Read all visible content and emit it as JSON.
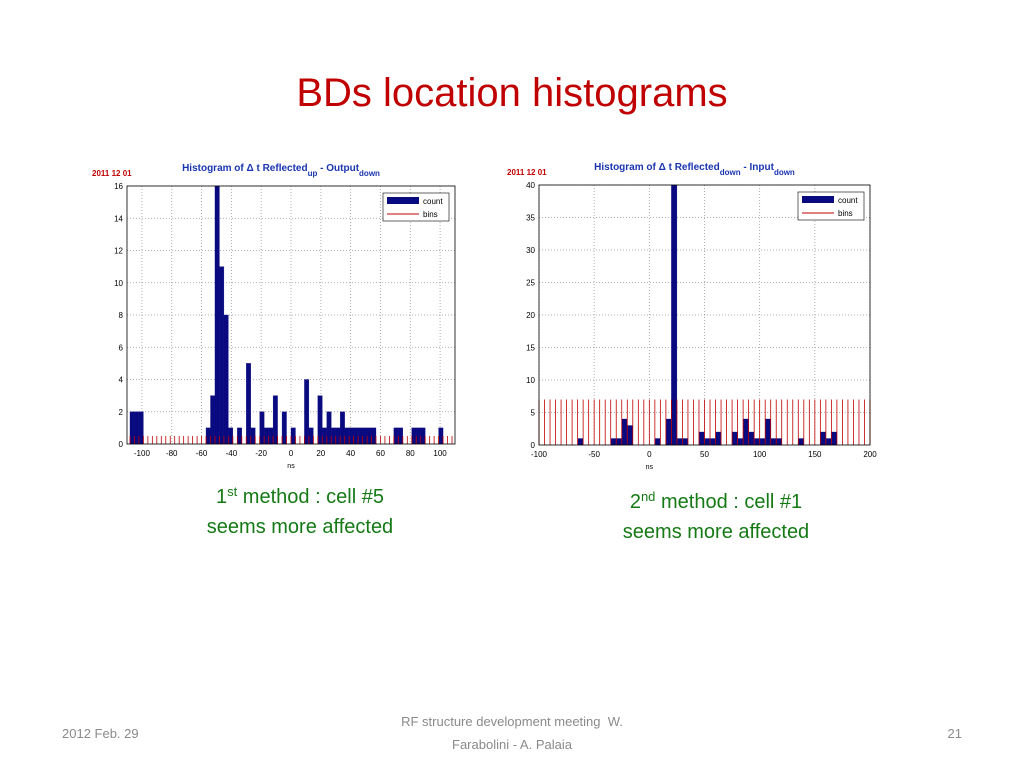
{
  "title": "BDs location histograms",
  "chart_data": [
    {
      "type": "histogram",
      "date": "2011 12 01",
      "title": {
        "main": "Histogram of Δ t Reflected",
        "sub1": "up",
        "mid": " - Output",
        "sub2": "down"
      },
      "xlabel": "ns",
      "bins": [
        -108,
        -105,
        -102,
        -99,
        -96,
        -93,
        -90,
        -87,
        -84,
        -81,
        -78,
        -75,
        -72,
        -69,
        -66,
        -63,
        -60,
        -57,
        -54,
        -51,
        -48,
        -45,
        -42,
        -39,
        -36,
        -33,
        -30,
        -27,
        -24,
        -21,
        -18,
        -15,
        -12,
        -9,
        -6,
        -3,
        0,
        3,
        6,
        9,
        12,
        15,
        18,
        21,
        24,
        27,
        30,
        33,
        36,
        39,
        42,
        45,
        48,
        51,
        54,
        57,
        60,
        63,
        66,
        69,
        72,
        75,
        78,
        81,
        84,
        87,
        90,
        93,
        96,
        99,
        102,
        105,
        108
      ],
      "series": [
        {
          "name": "count",
          "color": "#0a0a80",
          "values": [
            2,
            2,
            2,
            0,
            0,
            0,
            0,
            0,
            0,
            0,
            0,
            0,
            0,
            0,
            0,
            0,
            0,
            1,
            3,
            16,
            11,
            8,
            1,
            0,
            1,
            0,
            5,
            1,
            0,
            2,
            1,
            1,
            3,
            0,
            2,
            0,
            1,
            0,
            0,
            4,
            1,
            0,
            3,
            1,
            2,
            1,
            1,
            2,
            1,
            1,
            1,
            1,
            1,
            1,
            1,
            0,
            0,
            0,
            0,
            1,
            1,
            0,
            0,
            1,
            1,
            1,
            0,
            0,
            0,
            1,
            0,
            0
          ]
        },
        {
          "name": "bins",
          "color": "#c00000"
        }
      ],
      "bin_marker_height": 0.5,
      "xlim": [
        -110,
        110
      ],
      "ylim": [
        0,
        16
      ],
      "xticks": [
        -100,
        -80,
        -60,
        -40,
        -20,
        0,
        20,
        40,
        60,
        80,
        100
      ],
      "yticks": [
        0,
        2,
        4,
        6,
        8,
        10,
        12,
        14,
        16
      ],
      "grid": true,
      "legend": "upper right"
    },
    {
      "type": "histogram",
      "date": "2011 12 01",
      "title": {
        "main": "Histogram of Δ t Reflected",
        "sub1": "down",
        "mid": " - Input",
        "sub2": "down"
      },
      "xlabel": "ns",
      "bins": [
        -100,
        -95,
        -90,
        -85,
        -80,
        -75,
        -70,
        -65,
        -60,
        -55,
        -50,
        -45,
        -40,
        -35,
        -30,
        -25,
        -20,
        -15,
        -10,
        -5,
        0,
        5,
        10,
        15,
        20,
        25,
        30,
        35,
        40,
        45,
        50,
        55,
        60,
        65,
        70,
        75,
        80,
        85,
        90,
        95,
        100,
        105,
        110,
        115,
        120,
        125,
        130,
        135,
        140,
        145,
        150,
        155,
        160,
        165,
        170,
        175,
        180,
        185,
        190,
        195,
        200
      ],
      "series": [
        {
          "name": "count",
          "color": "#0a0a80",
          "values": [
            0,
            0,
            0,
            0,
            0,
            0,
            0,
            1,
            0,
            0,
            0,
            0,
            0,
            1,
            1,
            4,
            3,
            0,
            0,
            0,
            0,
            1,
            0,
            4,
            40,
            1,
            1,
            0,
            0,
            2,
            1,
            1,
            2,
            0,
            0,
            2,
            1,
            4,
            2,
            1,
            1,
            4,
            1,
            1,
            0,
            0,
            0,
            1,
            0,
            0,
            0,
            2,
            1,
            2,
            0,
            0,
            0,
            0,
            0,
            0
          ]
        },
        {
          "name": "bins",
          "color": "#c00000"
        }
      ],
      "bin_marker_height": 7,
      "xlim": [
        -100,
        200
      ],
      "ylim": [
        0,
        40
      ],
      "xticks": [
        -100,
        -50,
        0,
        50,
        100,
        150,
        200
      ],
      "yticks": [
        0,
        5,
        10,
        15,
        20,
        25,
        30,
        35,
        40
      ],
      "grid": true,
      "legend": "upper right"
    }
  ],
  "captions": [
    {
      "number": "1",
      "suffix": "st",
      "text": " method : cell #5",
      "line2": "seems more affected"
    },
    {
      "number": "2",
      "suffix": "nd",
      "text": " method : cell #1",
      "line2": "seems more affected"
    }
  ],
  "footer": {
    "date": "2012 Feb. 29",
    "center_line1": "RF structure development meeting  W.",
    "center_line2": "Farabolini - A. Palaia",
    "page": "21"
  }
}
